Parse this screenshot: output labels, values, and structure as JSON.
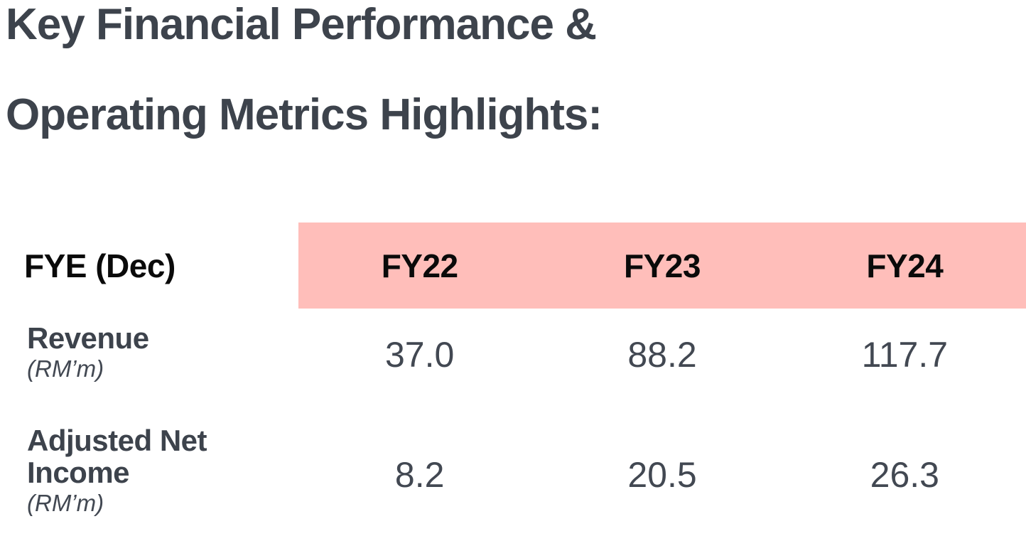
{
  "title": {
    "line1": "Key Financial Performance &",
    "line2": "Operating Metrics Highlights:"
  },
  "table": {
    "header": {
      "label": "FYE (Dec)",
      "columns": [
        "FY22",
        "FY23",
        "FY24"
      ]
    },
    "rows": [
      {
        "metric": "Revenue",
        "unit": "(RM’m)",
        "values": [
          "37.0",
          "88.2",
          "117.7"
        ]
      },
      {
        "metric": "Adjusted Net Income",
        "unit": "(RM’m)",
        "values": [
          "8.2",
          "20.5",
          "26.3"
        ]
      }
    ]
  },
  "colors": {
    "header_band": "#ffbeba",
    "header_text": "#0a0a0a",
    "title_text": "#3d434c",
    "body_text": "#424852",
    "background": "#ffffff"
  },
  "chart_data": {
    "type": "table",
    "title": "Key Financial Performance & Operating Metrics Highlights:",
    "columns": [
      "FYE (Dec)",
      "FY22",
      "FY23",
      "FY24"
    ],
    "rows": [
      {
        "metric": "Revenue (RM’m)",
        "values": [
          37.0,
          88.2,
          117.7
        ]
      },
      {
        "metric": "Adjusted Net Income (RM’m)",
        "values": [
          8.2,
          20.5,
          26.3
        ]
      }
    ]
  }
}
